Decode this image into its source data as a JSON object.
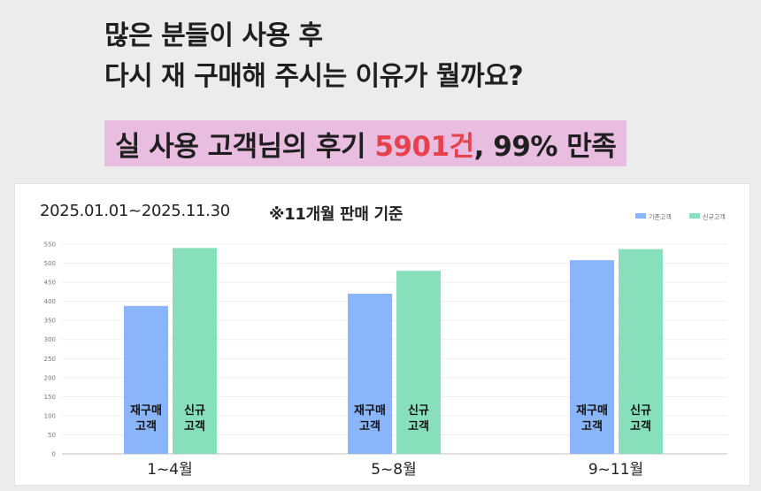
{
  "headline": {
    "line1": "많은 분들이 사용 후",
    "line2": "다시 재 구매해 주시는 이유가 뭘까요?"
  },
  "highlight": {
    "prefix": "실 사용 고객님의 후기 ",
    "count": "5901건",
    "suffix": ", 99% 만족"
  },
  "chart_header": {
    "period": "2025.01.01~2025.11.30",
    "basis": "※11개월 판매 기준"
  },
  "colors": {
    "returning": "#8ab6f9",
    "new": "#88dfbc",
    "accent": "#e8414e",
    "highlight_bg": "#e8bde0"
  },
  "chart_data": {
    "type": "bar",
    "categories": [
      "1~4월",
      "5~8월",
      "9~11월"
    ],
    "series": [
      {
        "name": "기존고객",
        "values": [
          388,
          420,
          508
        ],
        "bar_label": [
          "재구매",
          "고객"
        ]
      },
      {
        "name": "신규고객",
        "values": [
          540,
          480,
          537
        ],
        "bar_label": [
          "신규",
          "고객"
        ]
      }
    ],
    "yticks": [
      0,
      50,
      100,
      150,
      200,
      250,
      300,
      350,
      400,
      450,
      500,
      550
    ],
    "ylim": [
      0,
      550
    ],
    "grid": true,
    "legend": "top-right"
  }
}
